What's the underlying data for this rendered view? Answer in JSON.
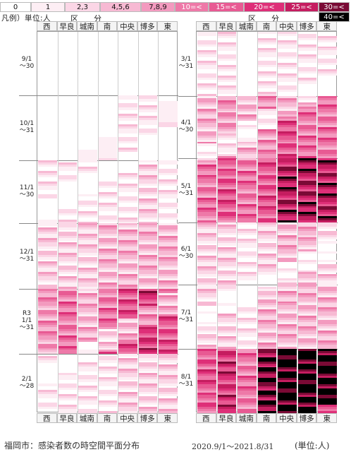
{
  "legend": {
    "title": "凡例）単位:人",
    "group_label": "区　　分",
    "items": [
      {
        "label": "0",
        "color": "#ffffff",
        "text": "#111111"
      },
      {
        "label": "1",
        "color": "#fdeef4",
        "text": "#111111"
      },
      {
        "label": "2,3",
        "color": "#fbd6e6",
        "text": "#111111"
      },
      {
        "label": "4,5,6",
        "color": "#f7b9d3",
        "text": "#111111"
      },
      {
        "label": "7,8,9",
        "color": "#f39abf",
        "text": "#111111"
      },
      {
        "label": "10=<",
        "color": "#ee79a8",
        "text": "#ffffff"
      },
      {
        "label": "15=<",
        "color": "#e85a93",
        "text": "#ffffff"
      },
      {
        "label": "20=<",
        "color": "#de2f78",
        "text": "#ffffff"
      },
      {
        "label": "25=<",
        "color": "#c51d60",
        "text": "#ffffff"
      },
      {
        "label": "30=<",
        "color": "#7a0a35",
        "text": "#ffffff"
      },
      {
        "label": "40=<",
        "color": "#000000",
        "text": "#ffffff"
      }
    ]
  },
  "districts": [
    "西",
    "早良",
    "城南",
    "南",
    "中央",
    "博多",
    "東"
  ],
  "left_panel": {
    "months": [
      {
        "lines": [
          "9/1",
          "～30"
        ]
      },
      {
        "lines": [
          "10/1",
          "～31"
        ]
      },
      {
        "lines": [
          "11/1",
          "～30"
        ]
      },
      {
        "lines": [
          "12/1",
          "～31"
        ]
      },
      {
        "lines": [
          "R3",
          "1/1",
          "～31"
        ]
      },
      {
        "lines": [
          "2/1",
          "～28"
        ]
      }
    ]
  },
  "right_panel": {
    "months": [
      {
        "lines": [
          "3/1",
          "～31"
        ]
      },
      {
        "lines": [
          "4/1",
          "～30"
        ]
      },
      {
        "lines": [
          "5/1",
          "～31"
        ]
      },
      {
        "lines": [
          "6/1",
          "～30"
        ]
      },
      {
        "lines": [
          "7/1",
          "～31"
        ]
      },
      {
        "lines": [
          "8/1",
          "～31"
        ]
      }
    ]
  },
  "caption": {
    "title": "福岡市：感染者数の時空間平面分布",
    "range": "2020.9/1～2021.8/31",
    "unit": "(単位:人)"
  },
  "chart_data": {
    "type": "heatmap",
    "title": "福岡市：感染者数の時空間平面分布",
    "x": [
      "西",
      "早良",
      "城南",
      "南",
      "中央",
      "博多",
      "東"
    ],
    "y_groups": [
      "9/1～30",
      "10/1～31",
      "11/1～30",
      "12/1～31",
      "1/1～31",
      "2/1～28",
      "3/1～31",
      "4/1～30",
      "5/1～31",
      "6/1～30",
      "7/1～31",
      "8/1～31"
    ],
    "legend_bins": [
      "0",
      "1",
      "2,3",
      "4,5,6",
      "7,8,9",
      "10=<",
      "15=<",
      "20=<",
      "25=<",
      "30=<",
      "40=<"
    ],
    "monthly_typical_level": {
      "note_units": "legend bin index 0-10",
      "西": [
        0,
        0,
        1,
        2,
        4,
        1,
        1,
        3,
        5,
        2,
        2,
        6
      ],
      "早良": [
        0,
        0,
        1,
        2,
        5,
        1,
        1,
        4,
        6,
        2,
        2,
        7
      ],
      "城南": [
        0,
        0,
        1,
        2,
        3,
        1,
        0,
        3,
        5,
        1,
        1,
        5
      ],
      "南": [
        0,
        0,
        1,
        3,
        5,
        1,
        1,
        4,
        6,
        2,
        3,
        9
      ],
      "中央": [
        0,
        1,
        1,
        3,
        6,
        2,
        1,
        6,
        8,
        3,
        3,
        10
      ],
      "博多": [
        0,
        1,
        2,
        3,
        7,
        2,
        1,
        5,
        8,
        3,
        3,
        10
      ],
      "東": [
        0,
        0,
        1,
        3,
        6,
        2,
        1,
        5,
        8,
        2,
        3,
        10
      ]
    }
  }
}
